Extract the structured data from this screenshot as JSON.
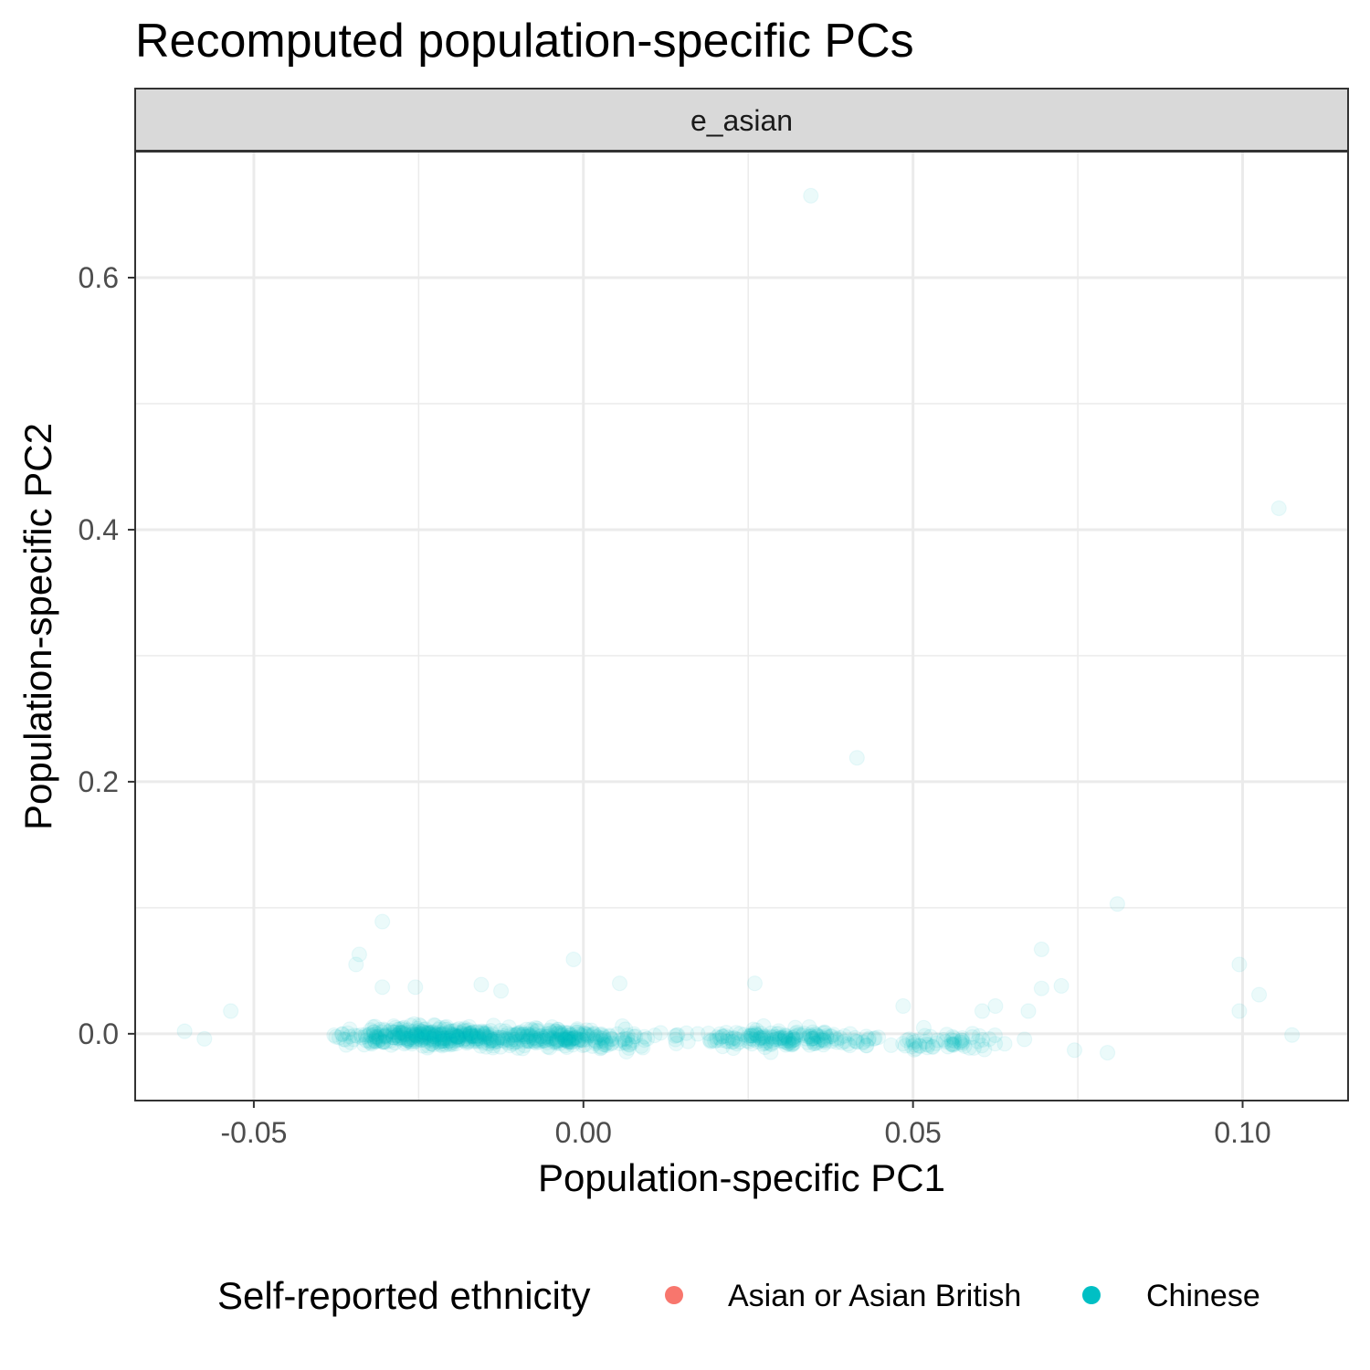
{
  "chart_data": {
    "type": "scatter",
    "title": "Recomputed population-specific PCs",
    "facet": "e_asian",
    "xlabel": "Population-specific PC1",
    "ylabel": "Population-specific PC2",
    "xlim": [
      -0.068,
      0.116
    ],
    "ylim": [
      -0.053,
      0.7
    ],
    "x_ticks": [
      -0.05,
      0.0,
      0.05,
      0.1
    ],
    "x_tick_labels": [
      "-0.05",
      "0.00",
      "0.05",
      "0.10"
    ],
    "y_ticks": [
      0.0,
      0.2,
      0.4,
      0.6
    ],
    "y_tick_labels": [
      "0.0",
      "0.2",
      "0.4",
      "0.6"
    ],
    "grid": true,
    "point_alpha": 0.08,
    "legend": {
      "title": "Self-reported ethnicity",
      "position": "bottom",
      "entries": [
        {
          "label": "Asian or Asian British",
          "color": "#F8766D"
        },
        {
          "label": "Chinese",
          "color": "#00BFC4"
        }
      ]
    },
    "series": [
      {
        "name": "Chinese",
        "color": "#00BFC4",
        "points": [
          [
            0.0345,
            0.665
          ],
          [
            0.1055,
            0.417
          ],
          [
            0.0415,
            0.219
          ],
          [
            0.081,
            0.103
          ],
          [
            -0.0305,
            0.089
          ],
          [
            0.0695,
            0.067
          ],
          [
            -0.034,
            0.063
          ],
          [
            -0.0015,
            0.059
          ],
          [
            0.0995,
            0.055
          ],
          [
            -0.0345,
            0.055
          ],
          [
            0.026,
            0.04
          ],
          [
            0.0055,
            0.04
          ],
          [
            0.0725,
            0.038
          ],
          [
            -0.0155,
            0.039
          ],
          [
            -0.0305,
            0.037
          ],
          [
            -0.0255,
            0.037
          ],
          [
            0.0695,
            0.036
          ],
          [
            -0.0125,
            0.034
          ],
          [
            0.1025,
            0.031
          ],
          [
            0.0485,
            0.022
          ],
          [
            0.0625,
            0.022
          ],
          [
            -0.0535,
            0.018
          ],
          [
            0.0605,
            0.018
          ],
          [
            0.0675,
            0.018
          ],
          [
            0.0995,
            0.018
          ],
          [
            0.0795,
            -0.015
          ],
          [
            -0.0575,
            -0.004
          ],
          [
            -0.0605,
            0.002
          ],
          [
            0.1075,
            -0.001
          ],
          [
            0.0745,
            -0.013
          ]
        ],
        "cluster": [
          {
            "x_center": -0.024,
            "x_spread": 0.011,
            "y_center": -0.002,
            "y_spread": 0.006,
            "n": 340
          },
          {
            "x_center": -0.004,
            "x_spread": 0.012,
            "y_center": -0.003,
            "y_spread": 0.006,
            "n": 260
          },
          {
            "x_center": 0.03,
            "x_spread": 0.012,
            "y_center": -0.004,
            "y_spread": 0.006,
            "n": 190
          },
          {
            "x_center": 0.055,
            "x_spread": 0.01,
            "y_center": -0.006,
            "y_spread": 0.006,
            "n": 60
          }
        ]
      }
    ]
  }
}
